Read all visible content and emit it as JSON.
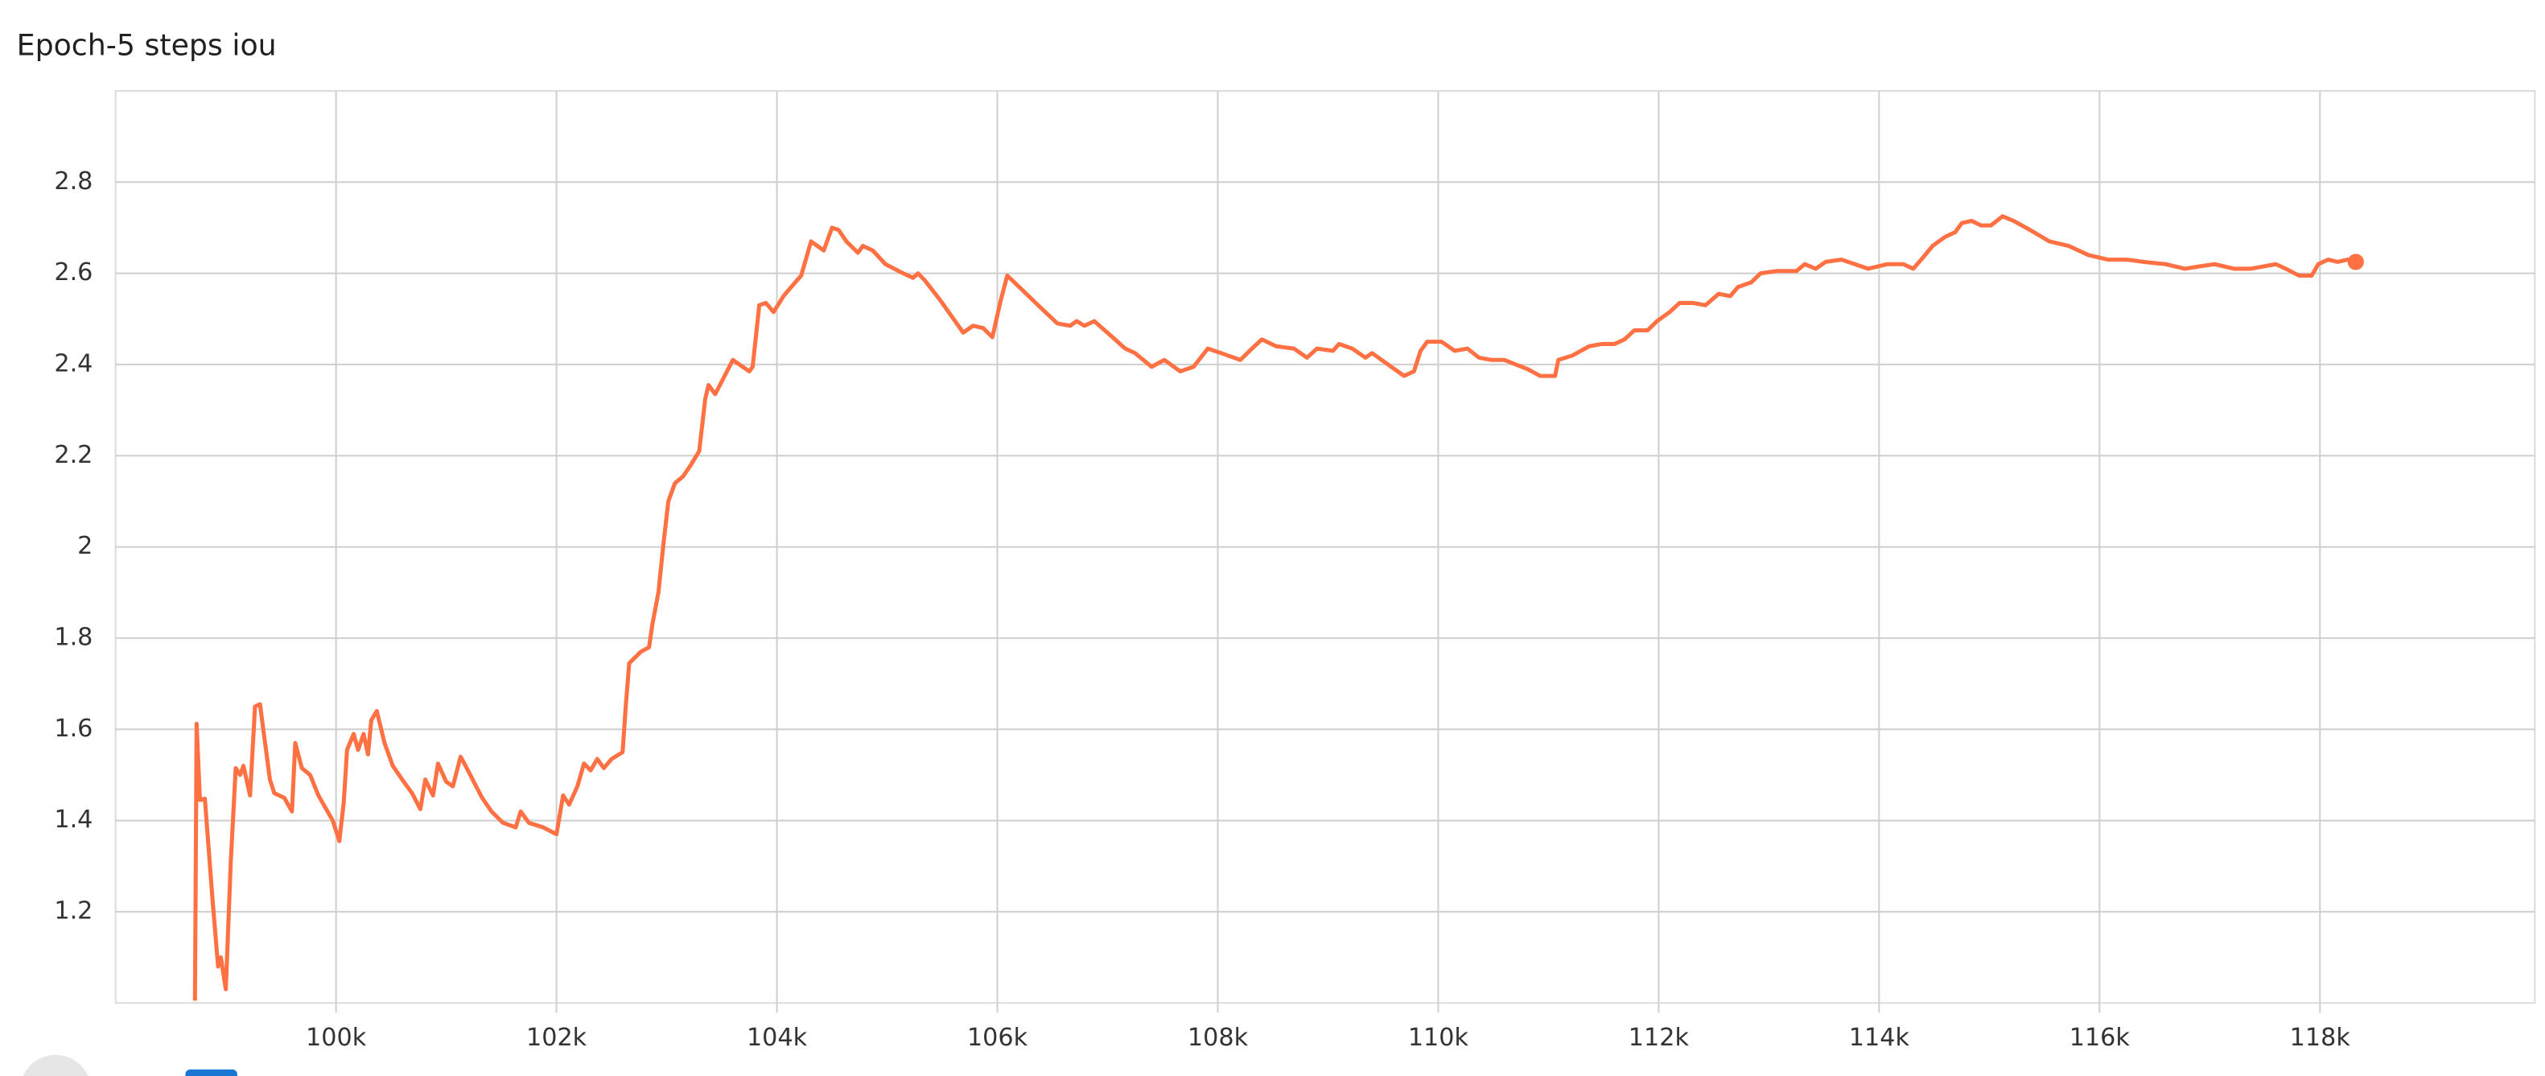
{
  "chart_data": {
    "type": "line",
    "title": "Epoch-5 steps iou",
    "x": [
      98720,
      98735,
      98765,
      98810,
      98880,
      98930,
      98955,
      99000,
      99045,
      99090,
      99130,
      99160,
      99220,
      99265,
      99310,
      99400,
      99440,
      99530,
      99600,
      99630,
      99690,
      99765,
      99840,
      99970,
      100030,
      100070,
      100100,
      100160,
      100200,
      100250,
      100290,
      100320,
      100370,
      100440,
      100515,
      100600,
      100690,
      100765,
      100810,
      100880,
      100925,
      101000,
      101060,
      101130,
      101175,
      101250,
      101325,
      101410,
      101515,
      101630,
      101675,
      101750,
      101880,
      102000,
      102060,
      102115,
      102190,
      102250,
      102310,
      102370,
      102430,
      102500,
      102600,
      102630,
      102660,
      102765,
      102840,
      102870,
      102925,
      102970,
      103015,
      103075,
      103150,
      103220,
      103295,
      103350,
      103380,
      103440,
      103515,
      103600,
      103750,
      103780,
      103840,
      103900,
      103970,
      104060,
      104130,
      104220,
      104310,
      104425,
      104500,
      104560,
      104630,
      104735,
      104780,
      104870,
      104985,
      105145,
      105235,
      105280,
      105340,
      105485,
      105690,
      105780,
      105870,
      105955,
      106030,
      106090,
      106220,
      106370,
      106545,
      106660,
      106720,
      106790,
      106880,
      107045,
      107160,
      107250,
      107400,
      107515,
      107660,
      107780,
      107910,
      108030,
      108205,
      108310,
      108400,
      108530,
      108690,
      108810,
      108900,
      109045,
      109100,
      109220,
      109340,
      109400,
      109545,
      109690,
      109780,
      109840,
      109900,
      110030,
      110150,
      110265,
      110370,
      110485,
      110600,
      110705,
      110810,
      110925,
      111060,
      111090,
      111220,
      111370,
      111485,
      111600,
      111690,
      111780,
      111900,
      111985,
      112100,
      112190,
      112310,
      112425,
      112545,
      112650,
      112720,
      112840,
      112925,
      113075,
      113250,
      113325,
      113425,
      113515,
      113660,
      113780,
      113900,
      114075,
      114220,
      114310,
      114400,
      114485,
      114600,
      114690,
      114750,
      114840,
      114925,
      115015,
      115120,
      115220,
      115370,
      115545,
      115720,
      115900,
      116075,
      116250,
      116400,
      116600,
      116775,
      116900,
      117045,
      117220,
      117370,
      117485,
      117600,
      117690,
      117810,
      117925,
      117985,
      118075,
      118160,
      118250,
      118325
    ],
    "series": [
      {
        "name": "iou",
        "color": "#ff7043",
        "values": [
          1.005,
          1.612,
          1.445,
          1.448,
          1.225,
          1.08,
          1.1,
          1.03,
          1.31,
          1.515,
          1.5,
          1.52,
          1.455,
          1.65,
          1.655,
          1.49,
          1.46,
          1.45,
          1.42,
          1.57,
          1.515,
          1.5,
          1.455,
          1.4,
          1.355,
          1.44,
          1.555,
          1.59,
          1.555,
          1.59,
          1.545,
          1.62,
          1.64,
          1.57,
          1.52,
          1.49,
          1.46,
          1.425,
          1.49,
          1.455,
          1.525,
          1.485,
          1.475,
          1.54,
          1.52,
          1.485,
          1.45,
          1.42,
          1.395,
          1.385,
          1.42,
          1.395,
          1.385,
          1.37,
          1.455,
          1.435,
          1.475,
          1.525,
          1.51,
          1.535,
          1.515,
          1.535,
          1.55,
          1.655,
          1.745,
          1.77,
          1.78,
          1.83,
          1.9,
          2.005,
          2.1,
          2.14,
          2.155,
          2.18,
          2.21,
          2.325,
          2.355,
          2.335,
          2.37,
          2.41,
          2.385,
          2.395,
          2.53,
          2.535,
          2.515,
          2.55,
          2.57,
          2.595,
          2.67,
          2.65,
          2.7,
          2.695,
          2.67,
          2.645,
          2.66,
          2.65,
          2.62,
          2.6,
          2.59,
          2.6,
          2.585,
          2.54,
          2.47,
          2.485,
          2.48,
          2.46,
          2.54,
          2.595,
          2.565,
          2.53,
          2.49,
          2.485,
          2.495,
          2.485,
          2.495,
          2.46,
          2.435,
          2.425,
          2.395,
          2.41,
          2.385,
          2.395,
          2.435,
          2.425,
          2.41,
          2.435,
          2.455,
          2.44,
          2.435,
          2.415,
          2.435,
          2.43,
          2.445,
          2.435,
          2.415,
          2.425,
          2.4,
          2.375,
          2.385,
          2.43,
          2.45,
          2.45,
          2.43,
          2.435,
          2.415,
          2.41,
          2.41,
          2.4,
          2.39,
          2.375,
          2.375,
          2.41,
          2.42,
          2.44,
          2.445,
          2.445,
          2.455,
          2.475,
          2.475,
          2.495,
          2.515,
          2.535,
          2.535,
          2.53,
          2.555,
          2.55,
          2.57,
          2.58,
          2.6,
          2.605,
          2.605,
          2.62,
          2.61,
          2.625,
          2.63,
          2.62,
          2.61,
          2.62,
          2.62,
          2.61,
          2.635,
          2.66,
          2.68,
          2.69,
          2.71,
          2.715,
          2.705,
          2.705,
          2.725,
          2.715,
          2.695,
          2.67,
          2.66,
          2.64,
          2.63,
          2.63,
          2.625,
          2.62,
          2.61,
          2.615,
          2.62,
          2.61,
          2.61,
          2.615,
          2.62,
          2.61,
          2.595,
          2.595,
          2.62,
          2.63,
          2.625,
          2.63,
          2.625
        ]
      }
    ],
    "xlim": [
      98000,
      119950
    ],
    "ylim": [
      1,
      3
    ],
    "xticks": [
      {
        "value": 100000,
        "label": "100k"
      },
      {
        "value": 102000,
        "label": "102k"
      },
      {
        "value": 104000,
        "label": "104k"
      },
      {
        "value": 106000,
        "label": "106k"
      },
      {
        "value": 108000,
        "label": "108k"
      },
      {
        "value": 110000,
        "label": "110k"
      },
      {
        "value": 112000,
        "label": "112k"
      },
      {
        "value": 114000,
        "label": "114k"
      },
      {
        "value": 116000,
        "label": "116k"
      },
      {
        "value": 118000,
        "label": "118k"
      }
    ],
    "yticks": [
      1.2,
      1.4,
      1.6,
      1.8,
      2,
      2.2,
      2.4,
      2.6,
      2.8
    ],
    "grid": true
  }
}
